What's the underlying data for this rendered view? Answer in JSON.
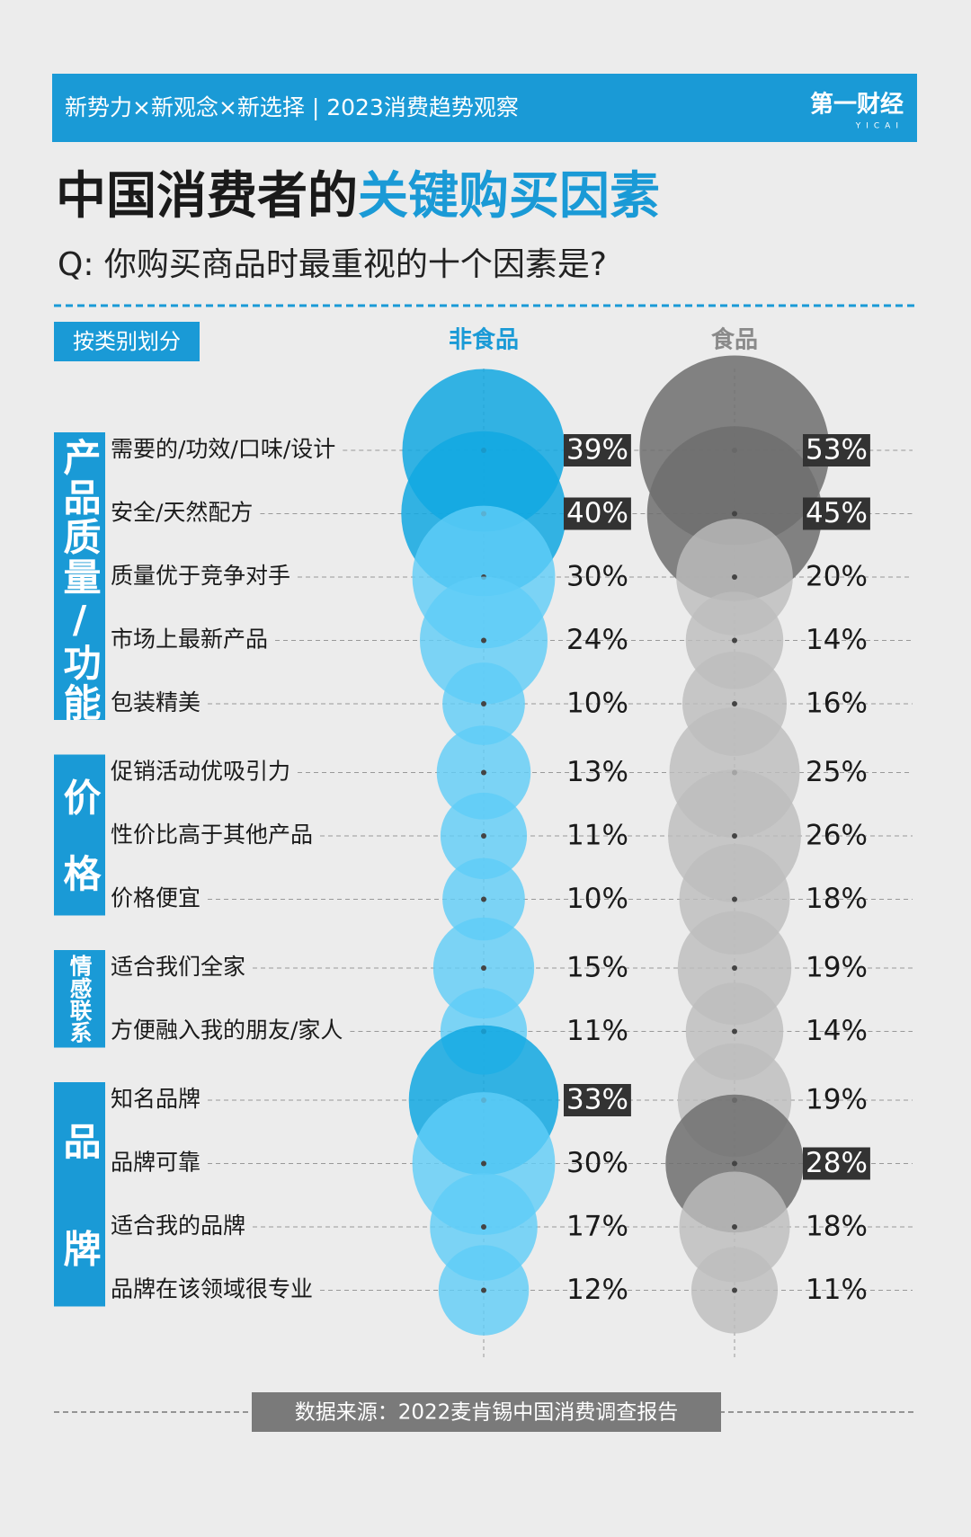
{
  "header": {
    "tagline": "新势力×新观念×新选择 | 2023消费趋势观察",
    "logo": "第一财经",
    "logo_sub": "YICAI"
  },
  "chart_data": {
    "type": "bubble",
    "title_part1": "中国消费者的",
    "title_part2": "关键购买因素",
    "subtitle": "Q: 你购买商品时最重视的十个因素是?",
    "tag": "按类别划分",
    "groups": [
      {
        "label": "产品质量/功能",
        "categories": [
          "需要的/功效/口味/设计",
          "安全/天然配方",
          "质量优于竞争对手",
          "市场上最新产品",
          "包装精美"
        ]
      },
      {
        "label": "价格",
        "categories": [
          "促销活动优吸引力",
          "性价比高于其他产品",
          "价格便宜"
        ]
      },
      {
        "label": "情感联系",
        "categories": [
          "适合我们全家",
          "方便融入我的朋友/家人"
        ]
      },
      {
        "label": "品牌",
        "categories": [
          "知名品牌",
          "品牌可靠",
          "适合我的品牌",
          "品牌在该领域很专业"
        ]
      }
    ],
    "series": [
      {
        "name": "非食品",
        "color": "#5fcdf7",
        "highlight_color": "#12a8e2",
        "highlighted": [
          true,
          true,
          false,
          false,
          false,
          false,
          false,
          false,
          false,
          false,
          true,
          false,
          false,
          false
        ],
        "values": [
          39,
          40,
          30,
          24,
          10,
          13,
          11,
          10,
          15,
          11,
          33,
          30,
          17,
          12
        ],
        "value_labels": [
          "39%",
          "40%",
          "30%",
          "24%",
          "10%",
          "13%",
          "11%",
          "10%",
          "15%",
          "11%",
          "33%",
          "30%",
          "17%",
          "12%"
        ]
      },
      {
        "name": "食品",
        "color": "#bdbdbd",
        "highlight_color": "#6e6e6e",
        "highlighted": [
          true,
          true,
          false,
          false,
          false,
          false,
          false,
          false,
          false,
          false,
          false,
          true,
          false,
          false
        ],
        "values": [
          53,
          45,
          20,
          14,
          16,
          25,
          26,
          18,
          19,
          14,
          19,
          28,
          18,
          11
        ],
        "value_labels": [
          "53%",
          "45%",
          "20%",
          "14%",
          "16%",
          "25%",
          "26%",
          "18%",
          "19%",
          "14%",
          "19%",
          "28%",
          "18%",
          "11%"
        ]
      }
    ],
    "source": "数据来源：2022麦肯锡中国消费调查报告"
  }
}
